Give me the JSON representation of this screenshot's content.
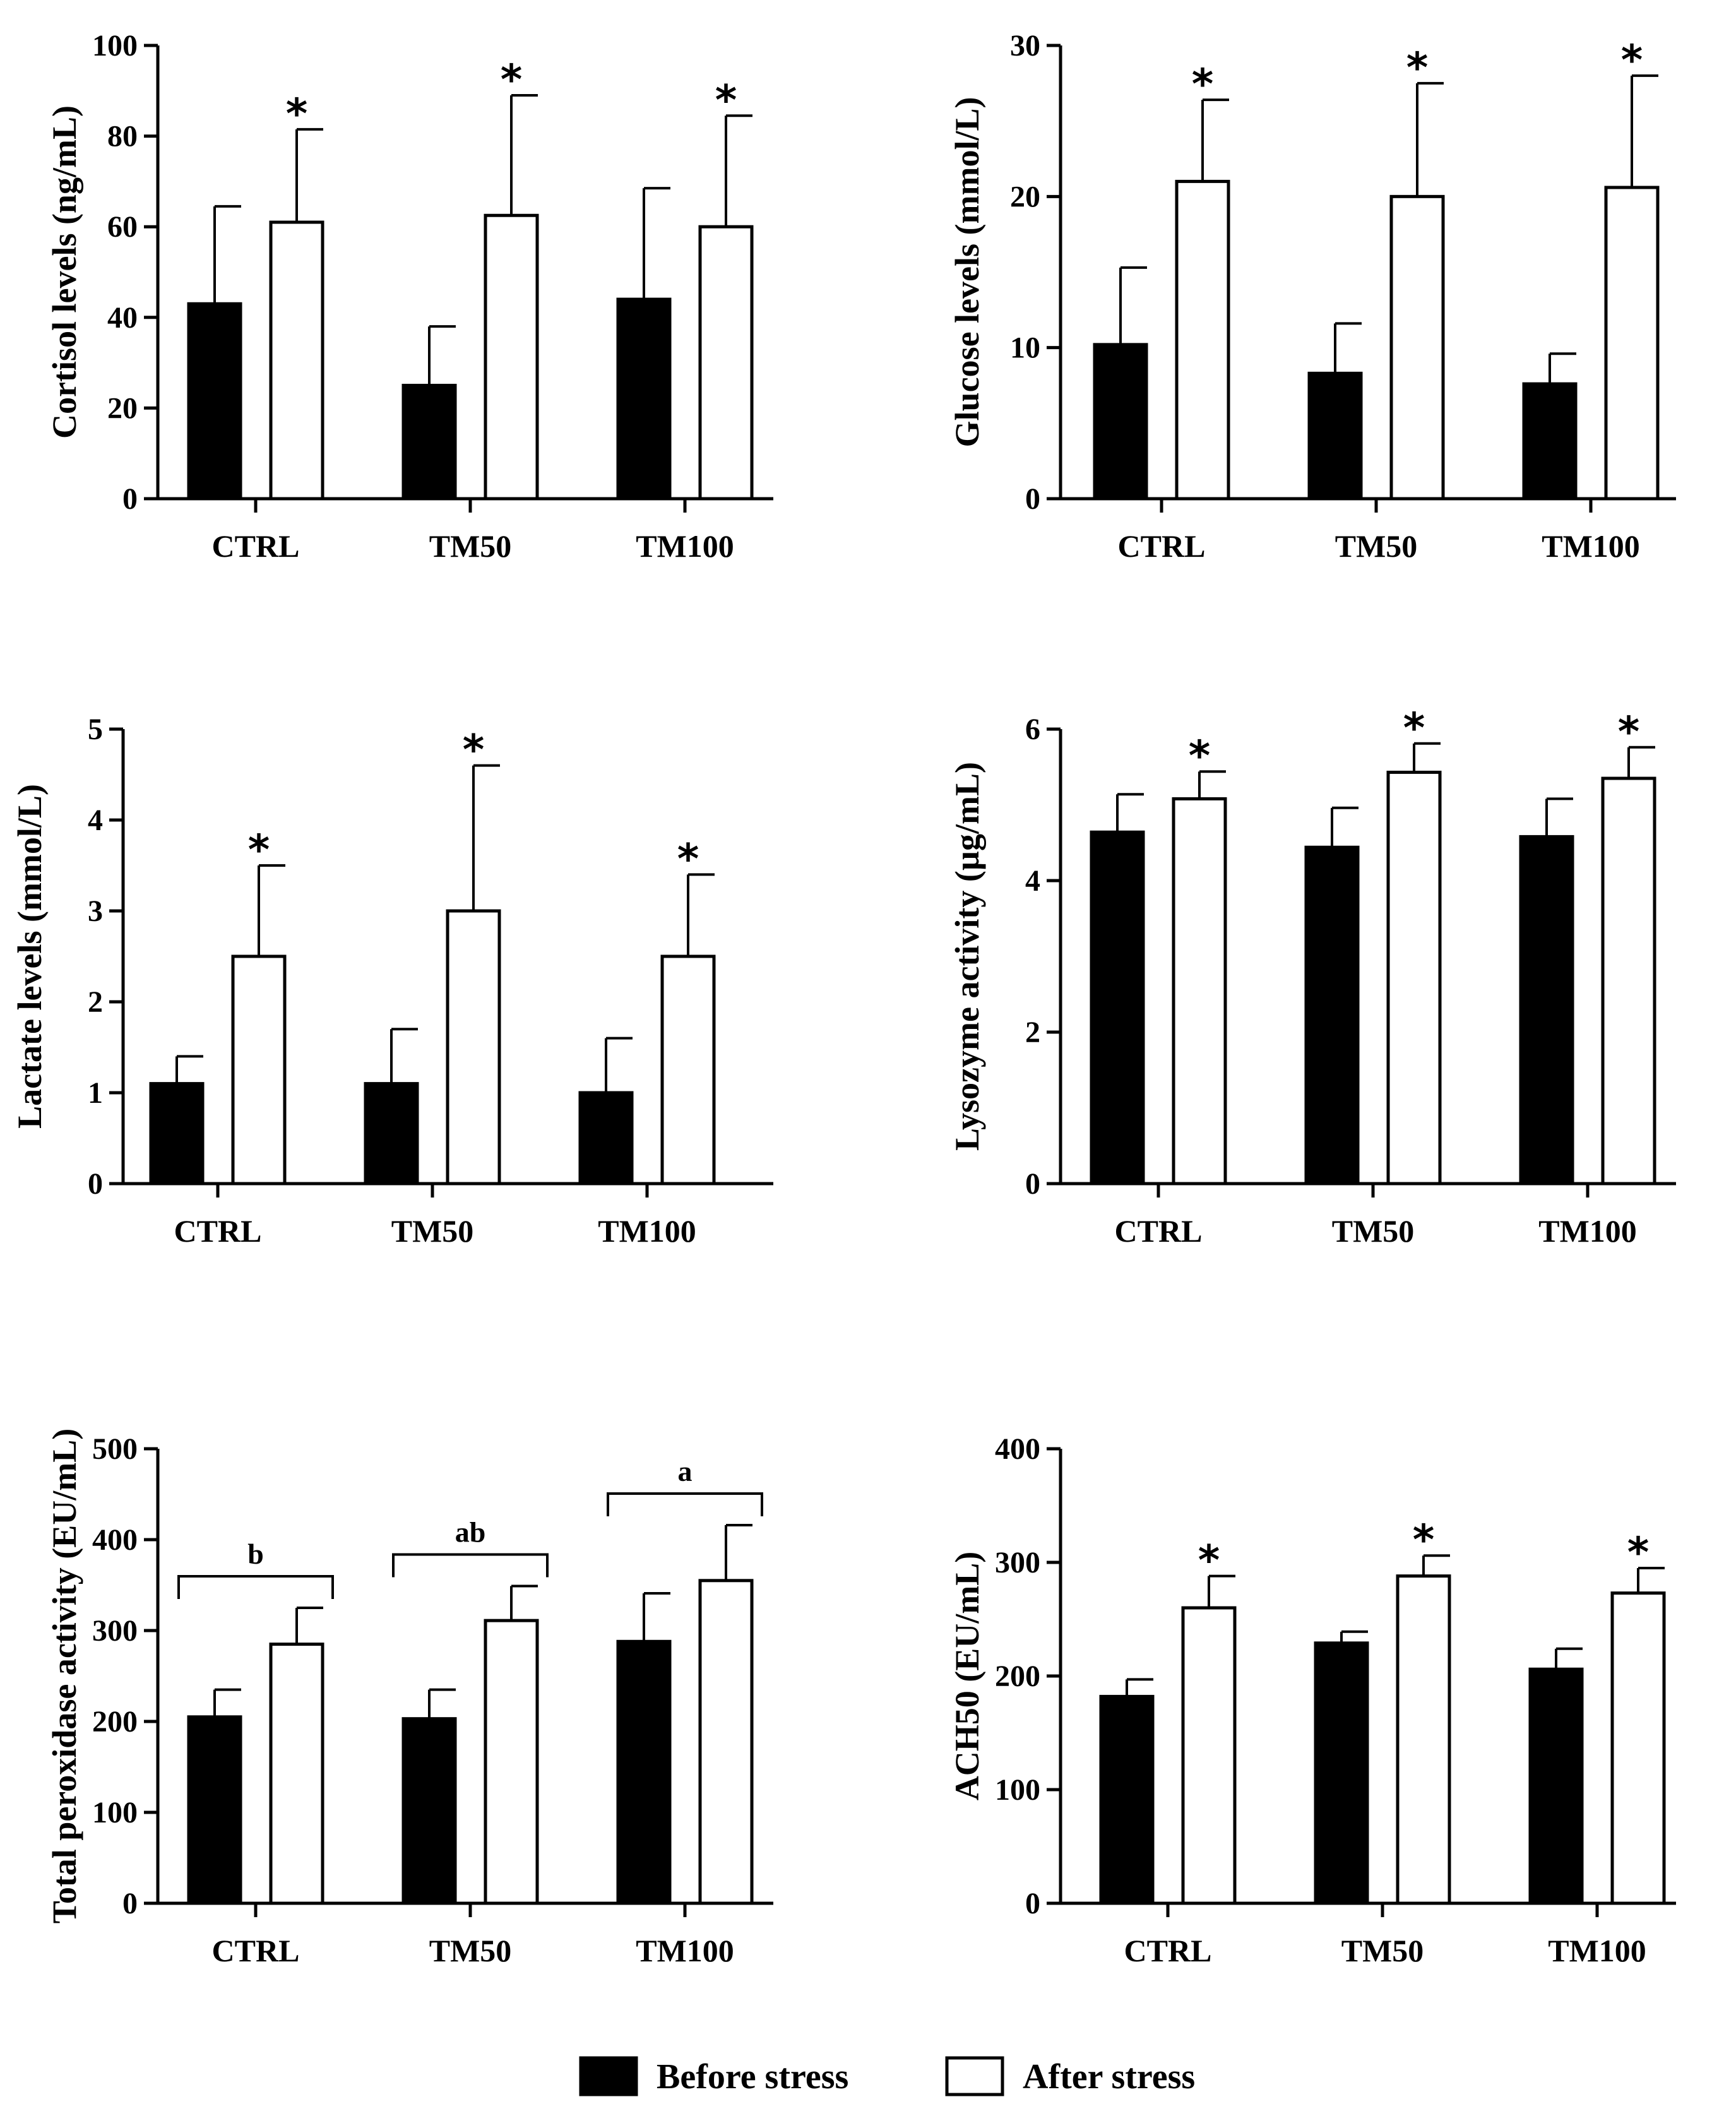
{
  "legend": {
    "items": [
      {
        "name": "Before stress",
        "fill": "#000000"
      },
      {
        "name": "After stress",
        "fill": "#ffffff"
      }
    ]
  },
  "chart_data": [
    {
      "type": "bar",
      "ylabel": "Cortisol levels (ng/mL)",
      "ylim": [
        0,
        100
      ],
      "yticks": [
        "0",
        "20",
        "40",
        "60",
        "80",
        "100"
      ],
      "categories": [
        "CTRL",
        "TM50",
        "TM100"
      ],
      "series": [
        {
          "name": "Before stress",
          "values": [
            43,
            25,
            44
          ],
          "errors": [
            21.5,
            13,
            24.5
          ]
        },
        {
          "name": "After stress",
          "values": [
            61,
            62.5,
            60
          ],
          "errors": [
            20.5,
            26.5,
            24.5
          ]
        }
      ],
      "markers": [
        "*",
        "*",
        "*"
      ],
      "group_labels": null
    },
    {
      "type": "bar",
      "ylabel": "Glucose levels (mmol/L)",
      "ylim": [
        0,
        30
      ],
      "yticks": [
        "0",
        "10",
        "20",
        "30"
      ],
      "categories": [
        "CTRL",
        "TM50",
        "TM100"
      ],
      "series": [
        {
          "name": "Before stress",
          "values": [
            10.2,
            8.3,
            7.6
          ],
          "errors": [
            5.1,
            3.3,
            2.0
          ]
        },
        {
          "name": "After stress",
          "values": [
            21.0,
            20.0,
            20.6
          ],
          "errors": [
            5.4,
            7.5,
            7.4
          ]
        }
      ],
      "markers": [
        "*",
        "*",
        "*"
      ],
      "group_labels": null
    },
    {
      "type": "bar",
      "ylabel": "Lactate levels (mmol/L)",
      "ylim": [
        0,
        5
      ],
      "yticks": [
        "0",
        "1",
        "2",
        "3",
        "4",
        "5"
      ],
      "categories": [
        "CTRL",
        "TM50",
        "TM100"
      ],
      "series": [
        {
          "name": "Before stress",
          "values": [
            1.1,
            1.1,
            1.0
          ],
          "errors": [
            0.3,
            0.6,
            0.6
          ]
        },
        {
          "name": "After stress",
          "values": [
            2.5,
            3.0,
            2.5
          ],
          "errors": [
            1.0,
            1.6,
            0.9
          ]
        }
      ],
      "markers": [
        "*",
        "*",
        "*"
      ],
      "group_labels": null
    },
    {
      "type": "bar",
      "ylabel": "Lysozyme activity (µg/mL)",
      "ylim": [
        0,
        6
      ],
      "yticks": [
        "0",
        "2",
        "4",
        "6"
      ],
      "categories": [
        "CTRL",
        "TM50",
        "TM100"
      ],
      "series": [
        {
          "name": "Before stress",
          "values": [
            4.64,
            4.44,
            4.58
          ],
          "errors": [
            0.5,
            0.52,
            0.5
          ]
        },
        {
          "name": "After stress",
          "values": [
            5.08,
            5.43,
            5.35
          ],
          "errors": [
            0.36,
            0.38,
            0.41
          ]
        }
      ],
      "markers": [
        "*",
        "*",
        "*"
      ],
      "group_labels": null
    },
    {
      "type": "bar",
      "ylabel": "Total peroxidase activity (EU/mL)",
      "ylim": [
        0,
        500
      ],
      "yticks": [
        "0",
        "100",
        "200",
        "300",
        "400",
        "500"
      ],
      "categories": [
        "CTRL",
        "TM50",
        "TM100"
      ],
      "series": [
        {
          "name": "Before stress",
          "values": [
            205,
            203,
            288
          ],
          "errors": [
            30,
            32,
            53
          ]
        },
        {
          "name": "After stress",
          "values": [
            285,
            311,
            355
          ],
          "errors": [
            40,
            38,
            61
          ]
        }
      ],
      "markers": null,
      "group_labels": [
        "b",
        "ab",
        "a"
      ]
    },
    {
      "type": "bar",
      "ylabel": "ACH50 (EU/mL)",
      "ylim": [
        0,
        400
      ],
      "yticks": [
        "0",
        "100",
        "200",
        "300",
        "400"
      ],
      "categories": [
        "CTRL",
        "TM50",
        "TM100"
      ],
      "series": [
        {
          "name": "Before stress",
          "values": [
            182,
            229,
            206
          ],
          "errors": [
            15,
            10,
            18
          ]
        },
        {
          "name": "After stress",
          "values": [
            260,
            288,
            273
          ],
          "errors": [
            28,
            18,
            22
          ]
        }
      ],
      "markers": [
        "*",
        "*",
        "*"
      ],
      "group_labels": null
    }
  ]
}
